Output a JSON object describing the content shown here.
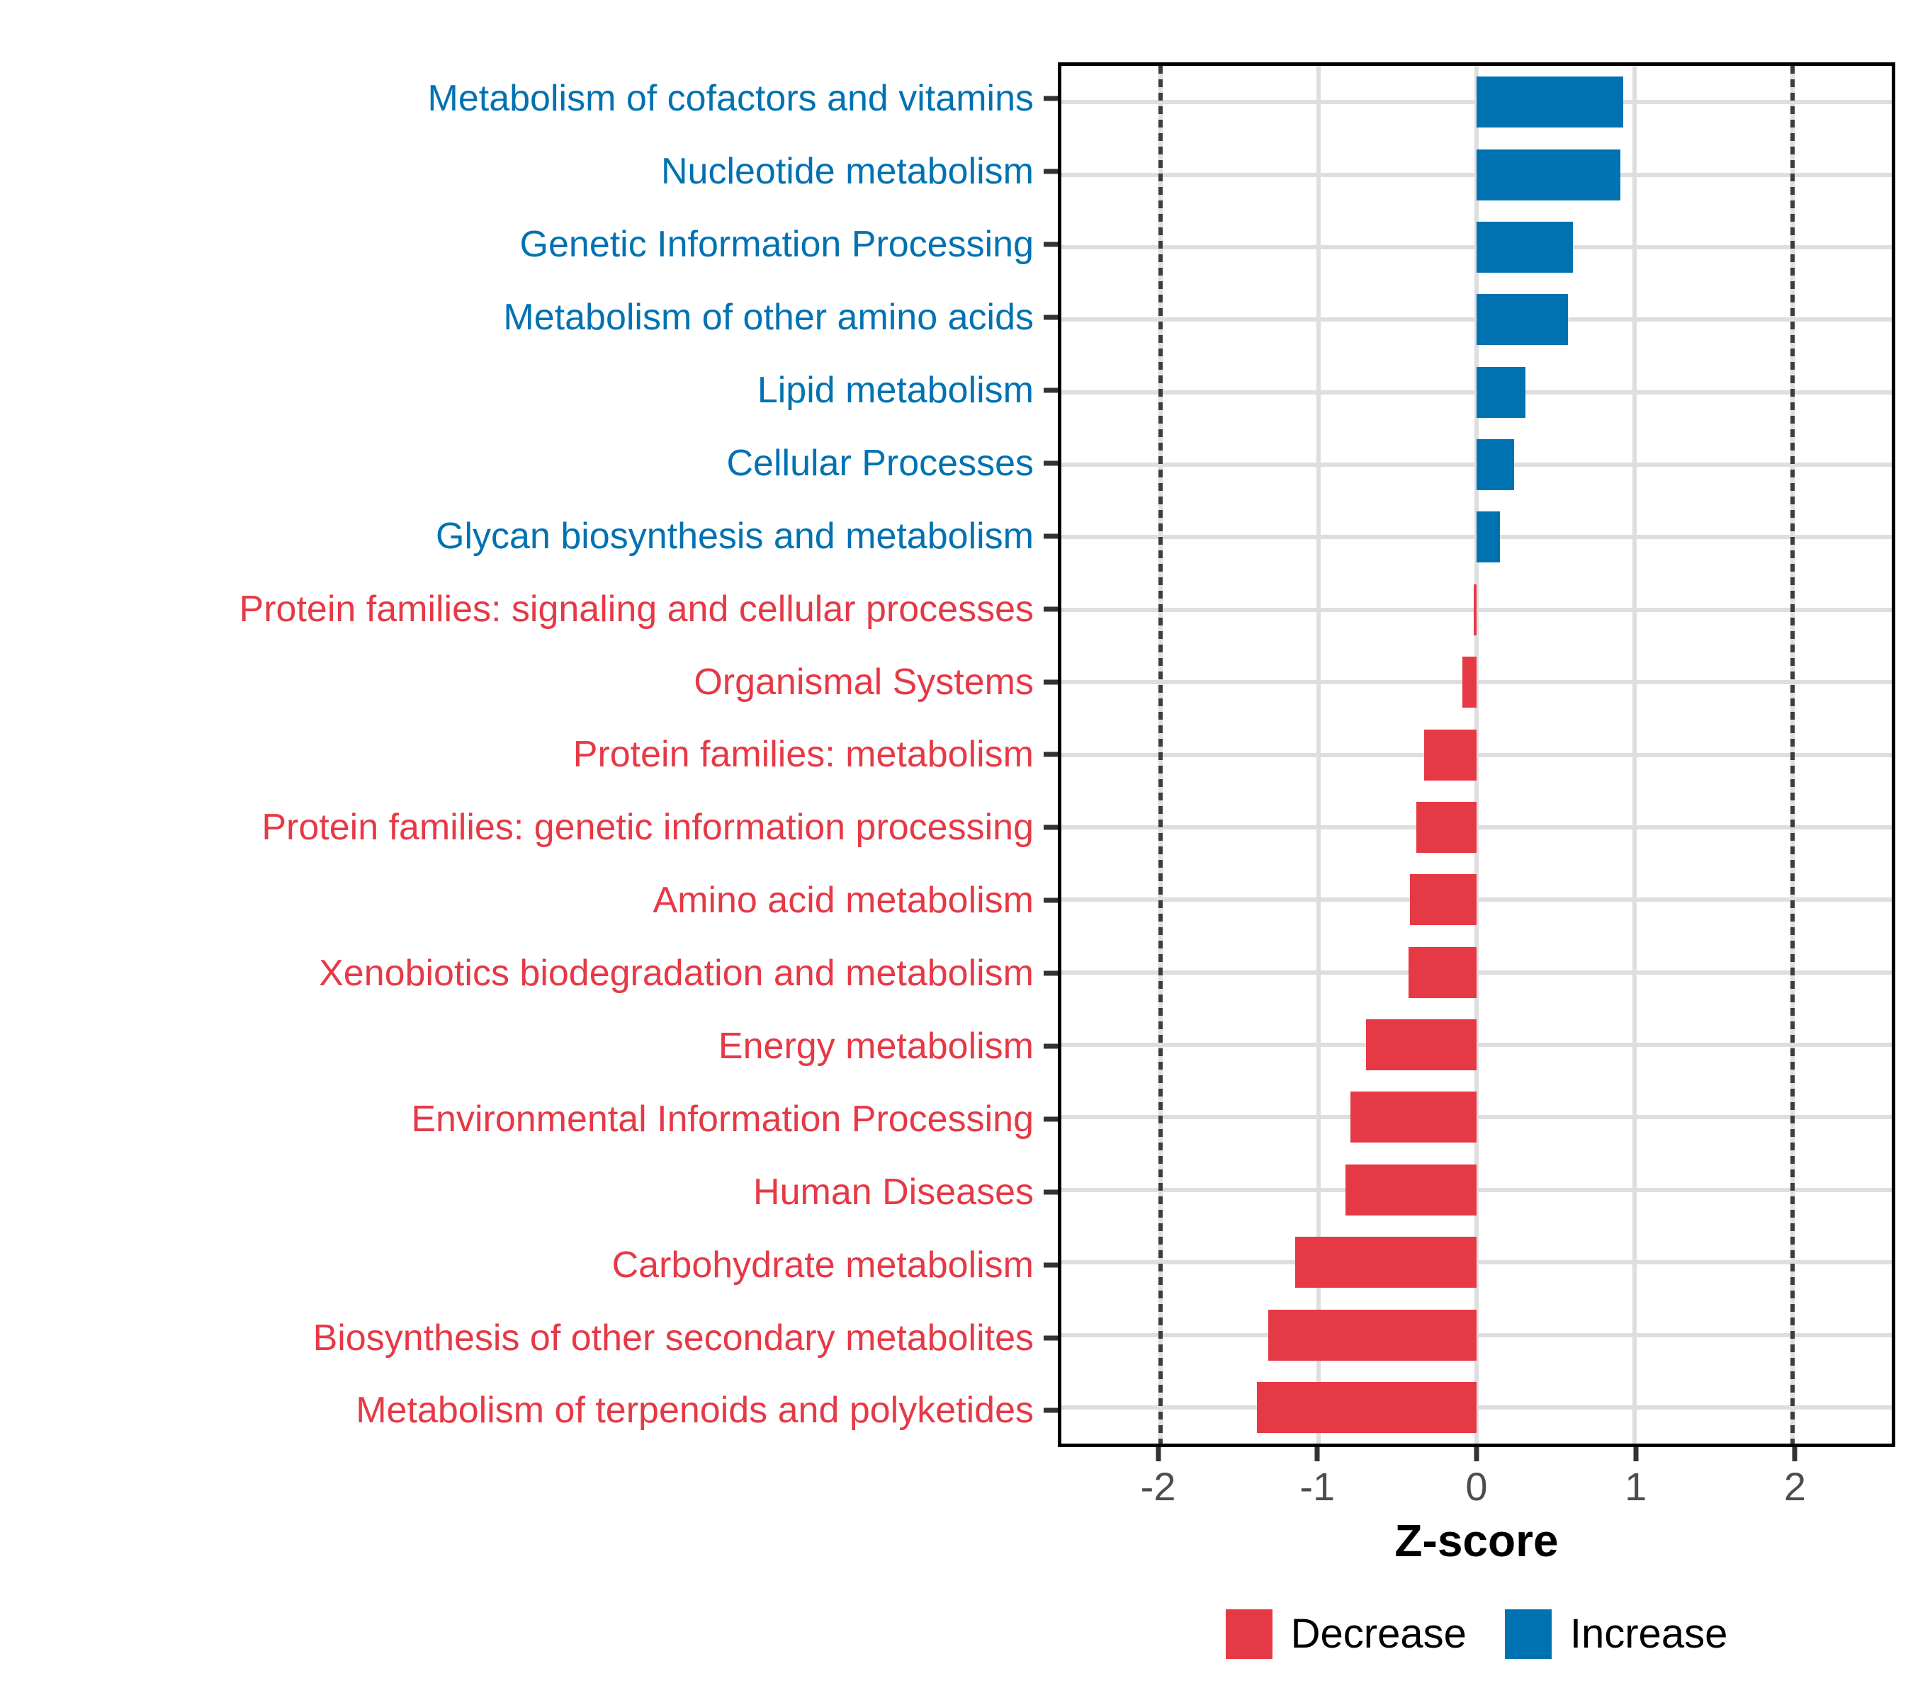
{
  "colors": {
    "increase": "#0072B2",
    "decrease": "#E63946",
    "grid": "#DEDEDE",
    "axis_text": "#4D4D4D",
    "tick_mark": "#333333",
    "panel_border": "#000000",
    "reference_line": "#3D3D3D"
  },
  "chart_data": {
    "type": "bar",
    "orientation": "horizontal",
    "title": "",
    "xlabel": "Z-score",
    "ylabel": "",
    "xlim": [
      -2.63,
      2.63
    ],
    "x_ticks": [
      -2,
      -1,
      0,
      1,
      2
    ],
    "x_tick_labels": [
      "-2",
      "-1",
      "0",
      "1",
      "2"
    ],
    "grid": "on",
    "reference_lines_dotted": [
      -2,
      2
    ],
    "legend_position": "bottom",
    "legend": [
      {
        "label": "Decrease",
        "color": "#E63946"
      },
      {
        "label": "Increase",
        "color": "#0072B2"
      }
    ],
    "categories": [
      "Metabolism of cofactors and vitamins",
      "Nucleotide metabolism",
      "Genetic Information Processing",
      "Metabolism of other amino acids",
      "Lipid metabolism",
      "Cellular Processes",
      "Glycan biosynthesis and metabolism",
      "Protein families: signaling and cellular processes",
      "Organismal Systems",
      "Protein families: metabolism",
      "Protein families: genetic information processing",
      "Amino acid metabolism",
      "Xenobiotics biodegradation and metabolism",
      "Energy metabolism",
      "Environmental Information Processing",
      "Human Diseases",
      "Carbohydrate metabolism",
      "Biosynthesis of other secondary metabolites",
      "Metabolism of terpenoids and polyketides"
    ],
    "values": [
      0.93,
      0.91,
      0.61,
      0.58,
      0.31,
      0.24,
      0.15,
      -0.02,
      -0.09,
      -0.33,
      -0.38,
      -0.42,
      -0.43,
      -0.7,
      -0.8,
      -0.83,
      -1.15,
      -1.32,
      -1.39
    ],
    "directions": [
      "increase",
      "increase",
      "increase",
      "increase",
      "increase",
      "increase",
      "increase",
      "decrease",
      "decrease",
      "decrease",
      "decrease",
      "decrease",
      "decrease",
      "decrease",
      "decrease",
      "decrease",
      "decrease",
      "decrease",
      "decrease"
    ]
  }
}
